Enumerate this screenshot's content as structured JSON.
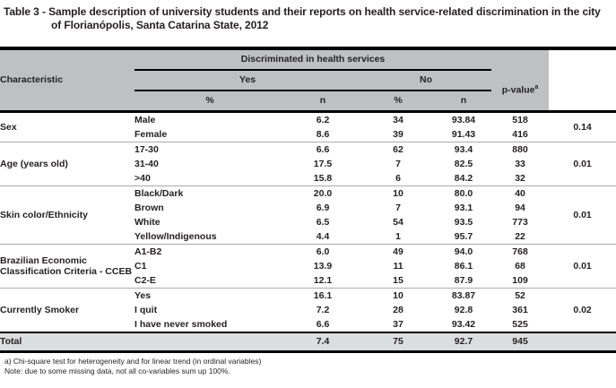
{
  "title": "Table 3 - Sample description of university students and their reports on health service-related discrimination in the city of Florianópolis, Santa Catarina State, 2012",
  "table": {
    "header": {
      "characteristic": "Characteristic",
      "group": "Discriminated in health services",
      "yes": "Yes",
      "no": "No",
      "pvalue": "p-value",
      "pvalue_sup": "a",
      "pct": "%",
      "n": "n"
    },
    "groups": [
      {
        "characteristic": "Sex",
        "p": "0.14",
        "rows": [
          {
            "category": "Male",
            "yes_pct": "6.2",
            "yes_n": "34",
            "no_pct": "93.84",
            "no_n": "518"
          },
          {
            "category": "Female",
            "yes_pct": "8.6",
            "yes_n": "39",
            "no_pct": "91.43",
            "no_n": "416"
          }
        ]
      },
      {
        "characteristic": "Age (years old)",
        "p": "0.01",
        "rows": [
          {
            "category": "17-30",
            "yes_pct": "6.6",
            "yes_n": "62",
            "no_pct": "93.4",
            "no_n": "880"
          },
          {
            "category": "31-40",
            "yes_pct": "17.5",
            "yes_n": "7",
            "no_pct": "82.5",
            "no_n": "33"
          },
          {
            "category": ">40",
            "yes_pct": "15.8",
            "yes_n": "6",
            "no_pct": "84.2",
            "no_n": "32"
          }
        ]
      },
      {
        "characteristic": "Skin color/Ethnicity",
        "p": "0.01",
        "rows": [
          {
            "category": "Black/Dark",
            "yes_pct": "20.0",
            "yes_n": "10",
            "no_pct": "80.0",
            "no_n": "40"
          },
          {
            "category": "Brown",
            "yes_pct": "6.9",
            "yes_n": "7",
            "no_pct": "93.1",
            "no_n": "94"
          },
          {
            "category": "White",
            "yes_pct": "6.5",
            "yes_n": "54",
            "no_pct": "93.5",
            "no_n": "773"
          },
          {
            "category": "Yellow/Indigenous",
            "yes_pct": "4.4",
            "yes_n": "1",
            "no_pct": "95.7",
            "no_n": "22"
          }
        ]
      },
      {
        "characteristic": "Brazilian Economic Classification Criteria - CCEB",
        "p": "0.01",
        "rows": [
          {
            "category": "A1-B2",
            "yes_pct": "6.0",
            "yes_n": "49",
            "no_pct": "94.0",
            "no_n": "768"
          },
          {
            "category": "C1",
            "yes_pct": "13.9",
            "yes_n": "11",
            "no_pct": "86.1",
            "no_n": "68"
          },
          {
            "category": "C2-E",
            "yes_pct": "12.1",
            "yes_n": "15",
            "no_pct": "87.9",
            "no_n": "109"
          }
        ]
      },
      {
        "characteristic": "Currently Smoker",
        "p": "0.02",
        "rows": [
          {
            "category": "Yes",
            "yes_pct": "16.1",
            "yes_n": "10",
            "no_pct": "83.87",
            "no_n": "52"
          },
          {
            "category": "I quit",
            "yes_pct": "7.2",
            "yes_n": "28",
            "no_pct": "92.8",
            "no_n": "361"
          },
          {
            "category": "I have never smoked",
            "yes_pct": "6.6",
            "yes_n": "37",
            "no_pct": "93.42",
            "no_n": "525"
          }
        ]
      }
    ],
    "total": {
      "label": "Total",
      "yes_pct": "7.4",
      "yes_n": "75",
      "no_pct": "92.7",
      "no_n": "945"
    }
  },
  "footnotes": [
    "a) Chi-square test for heterogeneity and for linear trend (in ordinal variables)",
    "Note: due to some missing data, not all co-variables sum up 100%."
  ],
  "colors": {
    "header_bg": "#bec0c2",
    "total_bg": "#dcddde",
    "separator": "#a9abad",
    "text": "#231f20"
  }
}
